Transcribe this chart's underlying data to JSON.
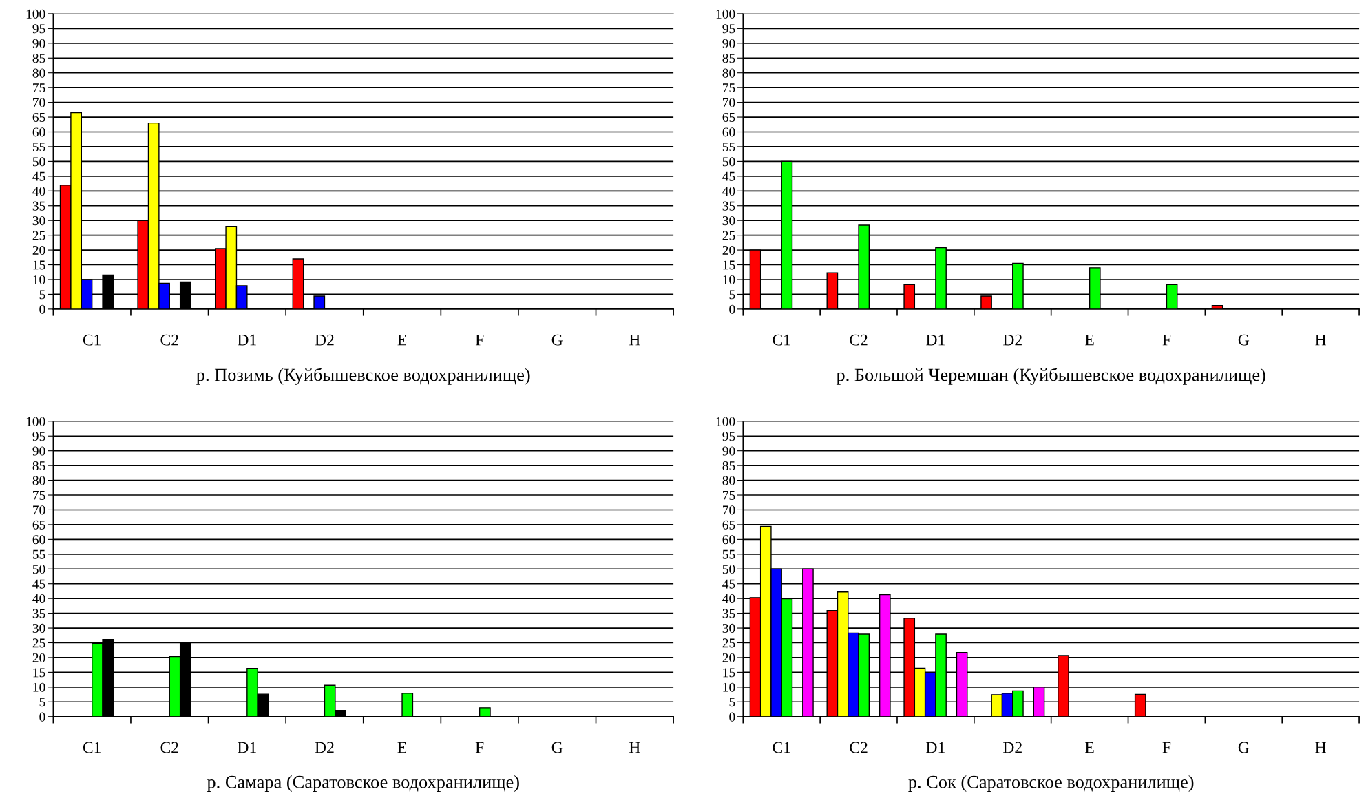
{
  "chart_data": [
    {
      "type": "bar",
      "xlabel": "р. Позимь (Куйбышевское водохранилище)",
      "categories": [
        "C1",
        "C2",
        "D1",
        "D2",
        "E",
        "F",
        "G",
        "H"
      ],
      "ylim": [
        0,
        100
      ],
      "yticks": [
        0,
        5,
        10,
        15,
        20,
        25,
        30,
        35,
        40,
        45,
        50,
        55,
        60,
        65,
        70,
        75,
        80,
        85,
        90,
        95,
        100
      ],
      "grid": "y",
      "series": [
        {
          "color": "#ff0000",
          "values": [
            42,
            30,
            20.5,
            17,
            null,
            null,
            null,
            null
          ]
        },
        {
          "color": "#ffff00",
          "values": [
            66.5,
            63,
            28,
            null,
            null,
            null,
            null,
            null
          ]
        },
        {
          "color": "#0000ff",
          "values": [
            10,
            8.7,
            7.9,
            4.4,
            null,
            null,
            null,
            null
          ]
        },
        {
          "color": "#00ff00",
          "values": [
            null,
            null,
            null,
            null,
            null,
            null,
            null,
            null
          ]
        },
        {
          "color": "#000000",
          "values": [
            11.5,
            9.2,
            null,
            null,
            null,
            null,
            null,
            null
          ]
        },
        {
          "color": "#ff00ff",
          "values": [
            null,
            null,
            null,
            null,
            null,
            null,
            null,
            null
          ]
        }
      ]
    },
    {
      "type": "bar",
      "xlabel": "р. Большой Черемшан (Куйбышевское водохранилище)",
      "categories": [
        "C1",
        "C2",
        "D1",
        "D2",
        "E",
        "F",
        "G",
        "H"
      ],
      "ylim": [
        0,
        100
      ],
      "yticks": [
        0,
        5,
        10,
        15,
        20,
        25,
        30,
        35,
        40,
        45,
        50,
        55,
        60,
        65,
        70,
        75,
        80,
        85,
        90,
        95,
        100
      ],
      "grid": "y",
      "series": [
        {
          "color": "#ff0000",
          "values": [
            20,
            12.3,
            8.3,
            4.4,
            null,
            null,
            1.2,
            null
          ]
        },
        {
          "color": "#ffff00",
          "values": [
            null,
            null,
            null,
            null,
            null,
            null,
            null,
            null
          ]
        },
        {
          "color": "#0000ff",
          "values": [
            null,
            null,
            null,
            null,
            null,
            null,
            null,
            null
          ]
        },
        {
          "color": "#00ff00",
          "values": [
            50,
            28.4,
            20.8,
            15.5,
            14,
            8.3,
            null,
            null
          ]
        },
        {
          "color": "#000000",
          "values": [
            null,
            null,
            null,
            null,
            null,
            null,
            null,
            null
          ]
        },
        {
          "color": "#ff00ff",
          "values": [
            null,
            null,
            null,
            null,
            null,
            null,
            null,
            null
          ]
        }
      ]
    },
    {
      "type": "bar",
      "xlabel": "р. Самара (Саратовское водохранилище)",
      "categories": [
        "C1",
        "C2",
        "D1",
        "D2",
        "E",
        "F",
        "G",
        "H"
      ],
      "ylim": [
        0,
        100
      ],
      "yticks": [
        0,
        5,
        10,
        15,
        20,
        25,
        30,
        35,
        40,
        45,
        50,
        55,
        60,
        65,
        70,
        75,
        80,
        85,
        90,
        95,
        100
      ],
      "grid": "y",
      "series": [
        {
          "color": "#ff0000",
          "values": [
            null,
            null,
            null,
            null,
            null,
            null,
            null,
            null
          ]
        },
        {
          "color": "#ffff00",
          "values": [
            null,
            null,
            null,
            null,
            null,
            null,
            null,
            null
          ]
        },
        {
          "color": "#0000ff",
          "values": [
            null,
            null,
            null,
            null,
            null,
            null,
            null,
            null
          ]
        },
        {
          "color": "#00ff00",
          "values": [
            24.7,
            20.3,
            16.3,
            10.6,
            7.9,
            3,
            null,
            null
          ]
        },
        {
          "color": "#000000",
          "values": [
            26.1,
            24.7,
            7.6,
            2.1,
            null,
            null,
            null,
            null
          ]
        },
        {
          "color": "#ff00ff",
          "values": [
            null,
            null,
            null,
            null,
            null,
            null,
            null,
            null
          ]
        }
      ]
    },
    {
      "type": "bar",
      "xlabel": "р. Сок (Саратовское водохранилище)",
      "categories": [
        "C1",
        "C2",
        "D1",
        "D2",
        "E",
        "F",
        "G",
        "H"
      ],
      "ylim": [
        0,
        100
      ],
      "yticks": [
        0,
        5,
        10,
        15,
        20,
        25,
        30,
        35,
        40,
        45,
        50,
        55,
        60,
        65,
        70,
        75,
        80,
        85,
        90,
        95,
        100
      ],
      "grid": "y",
      "series": [
        {
          "color": "#ff0000",
          "values": [
            40.3,
            35.9,
            33.3,
            null,
            20.7,
            7.5,
            null,
            null
          ]
        },
        {
          "color": "#ffff00",
          "values": [
            64.4,
            42.2,
            16.4,
            7.4,
            null,
            null,
            null,
            null
          ]
        },
        {
          "color": "#0000ff",
          "values": [
            50,
            28.3,
            14.9,
            7.9,
            null,
            null,
            null,
            null
          ]
        },
        {
          "color": "#00ff00",
          "values": [
            39.9,
            27.9,
            27.9,
            8.7,
            null,
            null,
            null,
            null
          ]
        },
        {
          "color": "#000000",
          "values": [
            null,
            null,
            null,
            null,
            null,
            null,
            null,
            null
          ]
        },
        {
          "color": "#ff00ff",
          "values": [
            50,
            41.3,
            21.7,
            10,
            null,
            null,
            null,
            null
          ]
        }
      ]
    }
  ]
}
